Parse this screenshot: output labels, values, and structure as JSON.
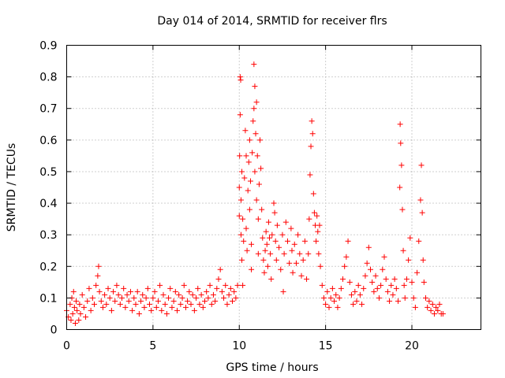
{
  "chart_data": {
    "type": "scatter",
    "title": "Day 014 of 2014, SRMTID for receiver flrs",
    "xlabel": "GPS time / hours",
    "ylabel": "SRMTID / TECUs",
    "xlim": [
      0,
      24
    ],
    "ylim": [
      0,
      0.9
    ],
    "xticks": [
      0,
      5,
      10,
      15,
      20
    ],
    "xtick_labels": [
      "0",
      "5",
      "10",
      "15",
      "20"
    ],
    "yticks": [
      0,
      0.1,
      0.2,
      0.3,
      0.4,
      0.5,
      0.6,
      0.7,
      0.8,
      0.9
    ],
    "ytick_labels": [
      "0",
      "0.1",
      "0.2",
      "0.3",
      "0.4",
      "0.5",
      "0.6",
      "0.7",
      "0.8",
      "0.9"
    ],
    "grid": true,
    "marker": "plus",
    "series": [
      {
        "name": "SRMTID",
        "color": "#ff0000",
        "points": [
          [
            0.0,
            0.06
          ],
          [
            0.1,
            0.04
          ],
          [
            0.2,
            0.08
          ],
          [
            0.25,
            0.03
          ],
          [
            0.3,
            0.1
          ],
          [
            0.35,
            0.05
          ],
          [
            0.4,
            0.12
          ],
          [
            0.45,
            0.07
          ],
          [
            0.5,
            0.02
          ],
          [
            0.55,
            0.09
          ],
          [
            0.6,
            0.06
          ],
          [
            0.7,
            0.03
          ],
          [
            0.75,
            0.08
          ],
          [
            0.8,
            0.05
          ],
          [
            0.9,
            0.11
          ],
          [
            1.0,
            0.07
          ],
          [
            1.1,
            0.04
          ],
          [
            1.2,
            0.09
          ],
          [
            1.3,
            0.13
          ],
          [
            1.4,
            0.06
          ],
          [
            1.5,
            0.1
          ],
          [
            1.6,
            0.08
          ],
          [
            1.7,
            0.14
          ],
          [
            1.8,
            0.17
          ],
          [
            1.85,
            0.2
          ],
          [
            1.9,
            0.12
          ],
          [
            2.0,
            0.09
          ],
          [
            2.1,
            0.07
          ],
          [
            2.2,
            0.11
          ],
          [
            2.3,
            0.08
          ],
          [
            2.4,
            0.13
          ],
          [
            2.5,
            0.1
          ],
          [
            2.6,
            0.06
          ],
          [
            2.7,
            0.12
          ],
          [
            2.8,
            0.09
          ],
          [
            2.9,
            0.14
          ],
          [
            3.0,
            0.11
          ],
          [
            3.1,
            0.08
          ],
          [
            3.2,
            0.1
          ],
          [
            3.3,
            0.13
          ],
          [
            3.4,
            0.07
          ],
          [
            3.5,
            0.11
          ],
          [
            3.6,
            0.09
          ],
          [
            3.7,
            0.12
          ],
          [
            3.8,
            0.06
          ],
          [
            3.9,
            0.1
          ],
          [
            4.0,
            0.08
          ],
          [
            4.1,
            0.12
          ],
          [
            4.2,
            0.05
          ],
          [
            4.3,
            0.09
          ],
          [
            4.4,
            0.11
          ],
          [
            4.5,
            0.07
          ],
          [
            4.6,
            0.1
          ],
          [
            4.7,
            0.13
          ],
          [
            4.8,
            0.08
          ],
          [
            4.9,
            0.06
          ],
          [
            5.0,
            0.1
          ],
          [
            5.1,
            0.12
          ],
          [
            5.2,
            0.07
          ],
          [
            5.3,
            0.09
          ],
          [
            5.4,
            0.14
          ],
          [
            5.5,
            0.06
          ],
          [
            5.6,
            0.11
          ],
          [
            5.7,
            0.08
          ],
          [
            5.8,
            0.05
          ],
          [
            5.9,
            0.1
          ],
          [
            6.0,
            0.13
          ],
          [
            6.1,
            0.07
          ],
          [
            6.2,
            0.09
          ],
          [
            6.3,
            0.12
          ],
          [
            6.4,
            0.06
          ],
          [
            6.5,
            0.11
          ],
          [
            6.6,
            0.08
          ],
          [
            6.7,
            0.1
          ],
          [
            6.8,
            0.14
          ],
          [
            6.9,
            0.07
          ],
          [
            7.0,
            0.09
          ],
          [
            7.1,
            0.12
          ],
          [
            7.2,
            0.08
          ],
          [
            7.3,
            0.11
          ],
          [
            7.4,
            0.06
          ],
          [
            7.5,
            0.1
          ],
          [
            7.6,
            0.13
          ],
          [
            7.7,
            0.08
          ],
          [
            7.8,
            0.11
          ],
          [
            7.9,
            0.07
          ],
          [
            8.0,
            0.09
          ],
          [
            8.1,
            0.12
          ],
          [
            8.2,
            0.1
          ],
          [
            8.3,
            0.14
          ],
          [
            8.4,
            0.08
          ],
          [
            8.5,
            0.11
          ],
          [
            8.6,
            0.09
          ],
          [
            8.7,
            0.13
          ],
          [
            8.8,
            0.16
          ],
          [
            8.9,
            0.19
          ],
          [
            9.0,
            0.12
          ],
          [
            9.1,
            0.1
          ],
          [
            9.2,
            0.14
          ],
          [
            9.3,
            0.08
          ],
          [
            9.4,
            0.11
          ],
          [
            9.5,
            0.13
          ],
          [
            9.6,
            0.09
          ],
          [
            9.7,
            0.12
          ],
          [
            9.8,
            0.1
          ],
          [
            9.9,
            0.14
          ],
          [
            10.0,
            0.36
          ],
          [
            10.0,
            0.45
          ],
          [
            10.02,
            0.55
          ],
          [
            10.05,
            0.68
          ],
          [
            10.05,
            0.8
          ],
          [
            10.08,
            0.79
          ],
          [
            10.1,
            0.41
          ],
          [
            10.1,
            0.3
          ],
          [
            10.15,
            0.5
          ],
          [
            10.15,
            0.22
          ],
          [
            10.2,
            0.35
          ],
          [
            10.2,
            0.14
          ],
          [
            10.25,
            0.28
          ],
          [
            10.3,
            0.48
          ],
          [
            10.35,
            0.63
          ],
          [
            10.4,
            0.55
          ],
          [
            10.4,
            0.32
          ],
          [
            10.45,
            0.25
          ],
          [
            10.5,
            0.44
          ],
          [
            10.55,
            0.53
          ],
          [
            10.6,
            0.6
          ],
          [
            10.6,
            0.38
          ],
          [
            10.65,
            0.47
          ],
          [
            10.7,
            0.27
          ],
          [
            10.7,
            0.19
          ],
          [
            10.75,
            0.56
          ],
          [
            10.8,
            0.66
          ],
          [
            10.85,
            0.7
          ],
          [
            10.85,
            0.84
          ],
          [
            10.9,
            0.77
          ],
          [
            10.9,
            0.5
          ],
          [
            10.95,
            0.62
          ],
          [
            11.0,
            0.72
          ],
          [
            11.0,
            0.41
          ],
          [
            11.05,
            0.55
          ],
          [
            11.1,
            0.35
          ],
          [
            11.1,
            0.24
          ],
          [
            11.15,
            0.46
          ],
          [
            11.2,
            0.6
          ],
          [
            11.25,
            0.51
          ],
          [
            11.3,
            0.38
          ],
          [
            11.35,
            0.29
          ],
          [
            11.4,
            0.22
          ],
          [
            11.45,
            0.18
          ],
          [
            11.5,
            0.25
          ],
          [
            11.55,
            0.31
          ],
          [
            11.6,
            0.27
          ],
          [
            11.65,
            0.2
          ],
          [
            11.7,
            0.34
          ],
          [
            11.75,
            0.29
          ],
          [
            11.8,
            0.24
          ],
          [
            11.85,
            0.16
          ],
          [
            11.9,
            0.3
          ],
          [
            12.0,
            0.4
          ],
          [
            12.05,
            0.37
          ],
          [
            12.1,
            0.28
          ],
          [
            12.15,
            0.22
          ],
          [
            12.2,
            0.33
          ],
          [
            12.3,
            0.26
          ],
          [
            12.4,
            0.19
          ],
          [
            12.5,
            0.3
          ],
          [
            12.55,
            0.12
          ],
          [
            12.6,
            0.24
          ],
          [
            12.7,
            0.34
          ],
          [
            12.8,
            0.28
          ],
          [
            12.9,
            0.21
          ],
          [
            13.0,
            0.32
          ],
          [
            13.05,
            0.25
          ],
          [
            13.1,
            0.18
          ],
          [
            13.2,
            0.27
          ],
          [
            13.3,
            0.21
          ],
          [
            13.4,
            0.3
          ],
          [
            13.5,
            0.24
          ],
          [
            13.6,
            0.17
          ],
          [
            13.7,
            0.22
          ],
          [
            13.8,
            0.28
          ],
          [
            13.9,
            0.16
          ],
          [
            14.0,
            0.24
          ],
          [
            14.05,
            0.35
          ],
          [
            14.1,
            0.49
          ],
          [
            14.15,
            0.58
          ],
          [
            14.2,
            0.66
          ],
          [
            14.25,
            0.62
          ],
          [
            14.3,
            0.43
          ],
          [
            14.35,
            0.37
          ],
          [
            14.4,
            0.33
          ],
          [
            14.45,
            0.28
          ],
          [
            14.5,
            0.36
          ],
          [
            14.55,
            0.31
          ],
          [
            14.6,
            0.24
          ],
          [
            14.65,
            0.33
          ],
          [
            14.7,
            0.2
          ],
          [
            14.8,
            0.14
          ],
          [
            14.9,
            0.1
          ],
          [
            15.0,
            0.08
          ],
          [
            15.1,
            0.12
          ],
          [
            15.2,
            0.07
          ],
          [
            15.3,
            0.1
          ],
          [
            15.4,
            0.13
          ],
          [
            15.5,
            0.09
          ],
          [
            15.6,
            0.11
          ],
          [
            15.7,
            0.07
          ],
          [
            15.8,
            0.1
          ],
          [
            15.9,
            0.13
          ],
          [
            16.0,
            0.16
          ],
          [
            16.1,
            0.2
          ],
          [
            16.2,
            0.23
          ],
          [
            16.3,
            0.28
          ],
          [
            16.4,
            0.15
          ],
          [
            16.5,
            0.11
          ],
          [
            16.6,
            0.08
          ],
          [
            16.7,
            0.12
          ],
          [
            16.8,
            0.09
          ],
          [
            16.9,
            0.14
          ],
          [
            17.0,
            0.11
          ],
          [
            17.1,
            0.08
          ],
          [
            17.2,
            0.13
          ],
          [
            17.3,
            0.17
          ],
          [
            17.4,
            0.21
          ],
          [
            17.5,
            0.26
          ],
          [
            17.6,
            0.19
          ],
          [
            17.7,
            0.15
          ],
          [
            17.8,
            0.12
          ],
          [
            17.9,
            0.17
          ],
          [
            18.0,
            0.13
          ],
          [
            18.1,
            0.1
          ],
          [
            18.2,
            0.14
          ],
          [
            18.3,
            0.19
          ],
          [
            18.4,
            0.23
          ],
          [
            18.5,
            0.16
          ],
          [
            18.6,
            0.12
          ],
          [
            18.7,
            0.09
          ],
          [
            18.8,
            0.14
          ],
          [
            18.9,
            0.11
          ],
          [
            19.0,
            0.16
          ],
          [
            19.1,
            0.13
          ],
          [
            19.2,
            0.09
          ],
          [
            19.3,
            0.45
          ],
          [
            19.32,
            0.65
          ],
          [
            19.35,
            0.59
          ],
          [
            19.4,
            0.52
          ],
          [
            19.45,
            0.38
          ],
          [
            19.5,
            0.25
          ],
          [
            19.55,
            0.14
          ],
          [
            19.6,
            0.1
          ],
          [
            19.7,
            0.16
          ],
          [
            19.8,
            0.22
          ],
          [
            19.9,
            0.29
          ],
          [
            20.0,
            0.15
          ],
          [
            20.1,
            0.1
          ],
          [
            20.2,
            0.07
          ],
          [
            20.3,
            0.18
          ],
          [
            20.4,
            0.28
          ],
          [
            20.5,
            0.41
          ],
          [
            20.55,
            0.52
          ],
          [
            20.6,
            0.37
          ],
          [
            20.65,
            0.22
          ],
          [
            20.7,
            0.15
          ],
          [
            20.8,
            0.1
          ],
          [
            20.9,
            0.07
          ],
          [
            21.0,
            0.09
          ],
          [
            21.1,
            0.06
          ],
          [
            21.2,
            0.08
          ],
          [
            21.3,
            0.05
          ],
          [
            21.4,
            0.07
          ],
          [
            21.5,
            0.06
          ],
          [
            21.6,
            0.08
          ],
          [
            21.7,
            0.05
          ],
          [
            21.8,
            0.05
          ]
        ]
      }
    ]
  }
}
